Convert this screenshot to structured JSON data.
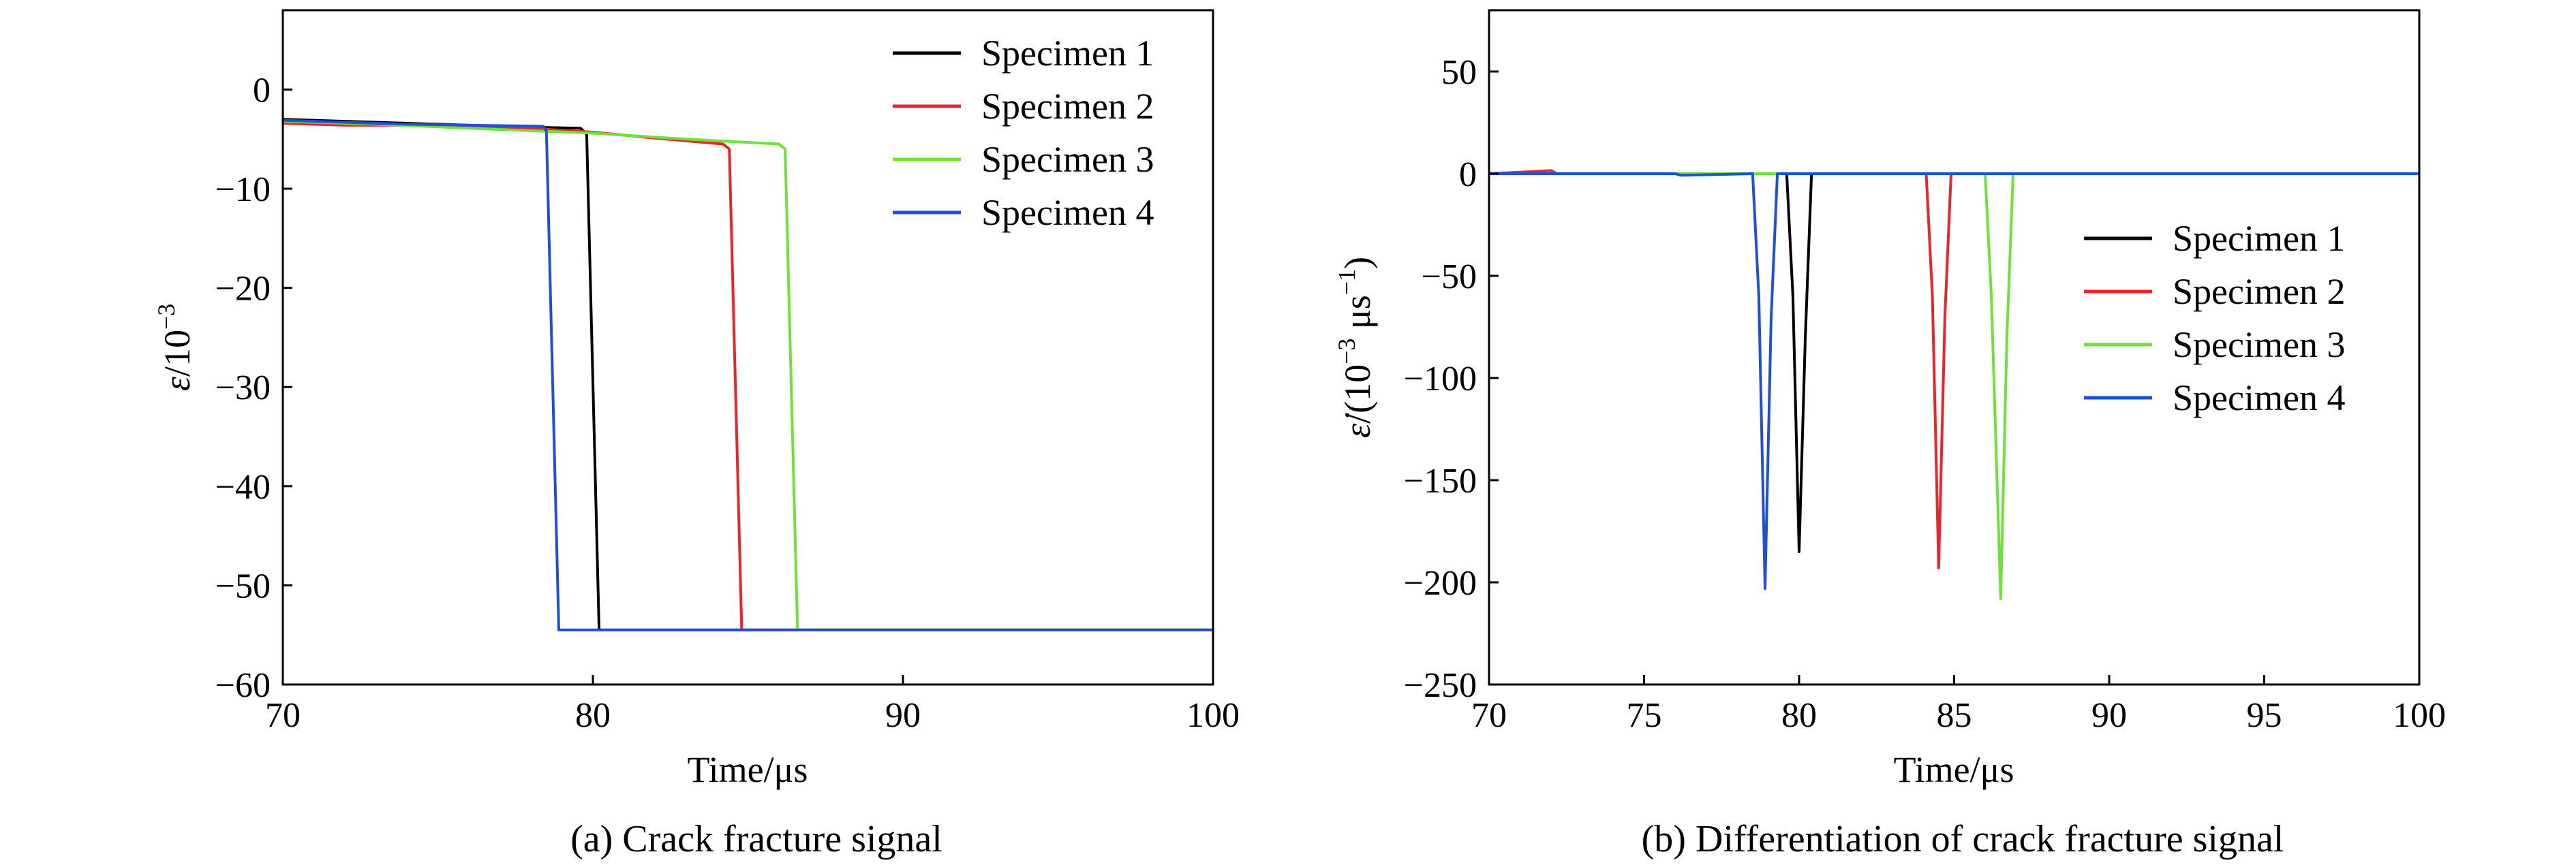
{
  "figure": {
    "panels": [
      {
        "caption": "(a) Crack fracture signal",
        "xlabel": "Time/μs",
        "ylabel_parts": [
          "ε",
          "/10",
          "−3"
        ],
        "legend_position": "top-right"
      },
      {
        "caption": "(b) Differentiation of crack fracture signal",
        "xlabel": "Time/μs",
        "ylabel_parts": [
          "ε̇",
          "/(10",
          "−3",
          " μs",
          "−1",
          ")"
        ],
        "legend_position": "center-right"
      }
    ],
    "colors": {
      "specimen_1": "#000000",
      "specimen_2": "#e8262a",
      "specimen_3": "#72e03b",
      "specimen_4": "#1f4fd6"
    }
  },
  "chart_data": [
    {
      "type": "line",
      "xlim": [
        70,
        100
      ],
      "ylim": [
        -60,
        8
      ],
      "xticks": [
        70,
        80,
        90,
        100
      ],
      "yticks": [
        0,
        -10,
        -20,
        -30,
        -40,
        -50,
        -60
      ],
      "ytick_labels": [
        "0",
        "−10",
        "−20",
        "−30",
        "−40",
        "−50",
        "−60"
      ],
      "grid": false,
      "series": [
        {
          "name": "Specimen 1",
          "color": "#000000",
          "x": [
            70,
            72,
            75,
            78,
            79.6,
            79.8,
            80.2,
            100
          ],
          "y": [
            -3.0,
            -3.2,
            -3.5,
            -3.8,
            -3.9,
            -4.5,
            -54.5,
            -54.5
          ]
        },
        {
          "name": "Specimen 2",
          "color": "#e8262a",
          "x": [
            70,
            72,
            75,
            78,
            80,
            82,
            84.2,
            84.4,
            84.8,
            100
          ],
          "y": [
            -3.4,
            -3.6,
            -3.6,
            -3.9,
            -4.3,
            -4.9,
            -5.5,
            -6.0,
            -54.5,
            -54.5
          ]
        },
        {
          "name": "Specimen 3",
          "color": "#72e03b",
          "x": [
            70,
            73,
            76,
            80,
            83,
            86.0,
            86.2,
            86.6,
            100
          ],
          "y": [
            -3.2,
            -3.5,
            -3.9,
            -4.4,
            -5.0,
            -5.5,
            -6.0,
            -54.5,
            -54.5
          ]
        },
        {
          "name": "Specimen 4",
          "color": "#1f4fd6",
          "x": [
            70,
            72,
            74,
            76,
            78.4,
            78.5,
            78.9,
            100
          ],
          "y": [
            -3.1,
            -3.3,
            -3.5,
            -3.6,
            -3.7,
            -4.2,
            -54.5,
            -54.5
          ]
        }
      ]
    },
    {
      "type": "line",
      "xlim": [
        70,
        100
      ],
      "ylim": [
        -250,
        80
      ],
      "xticks": [
        70,
        75,
        80,
        85,
        90,
        95,
        100
      ],
      "yticks": [
        50,
        0,
        -50,
        -100,
        -150,
        -200,
        -250
      ],
      "ytick_labels": [
        "50",
        "0",
        "−50",
        "−100",
        "−150",
        "−200",
        "−250"
      ],
      "grid": false,
      "series": [
        {
          "name": "Specimen 1",
          "color": "#000000",
          "x": [
            70,
            79.6,
            79.8,
            80.0,
            80.2,
            80.4,
            100
          ],
          "y": [
            0,
            0,
            -60,
            -185,
            -80,
            0,
            0
          ]
        },
        {
          "name": "Specimen 2",
          "color": "#e8262a",
          "x": [
            70,
            72.0,
            72.2,
            84.1,
            84.3,
            84.5,
            84.7,
            84.9,
            100
          ],
          "y": [
            0,
            1.5,
            0,
            0,
            -60,
            -193,
            -70,
            0,
            0
          ]
        },
        {
          "name": "Specimen 3",
          "color": "#72e03b",
          "x": [
            70,
            86.0,
            86.2,
            86.5,
            86.7,
            86.9,
            100
          ],
          "y": [
            0,
            0,
            -60,
            -208,
            -80,
            0,
            0
          ]
        },
        {
          "name": "Specimen 4",
          "color": "#1f4fd6",
          "x": [
            70,
            76.0,
            76.2,
            78.5,
            78.7,
            78.9,
            79.1,
            79.3,
            100
          ],
          "y": [
            0,
            0,
            -0.8,
            0,
            -60,
            -203,
            -70,
            0,
            0
          ]
        }
      ]
    }
  ]
}
